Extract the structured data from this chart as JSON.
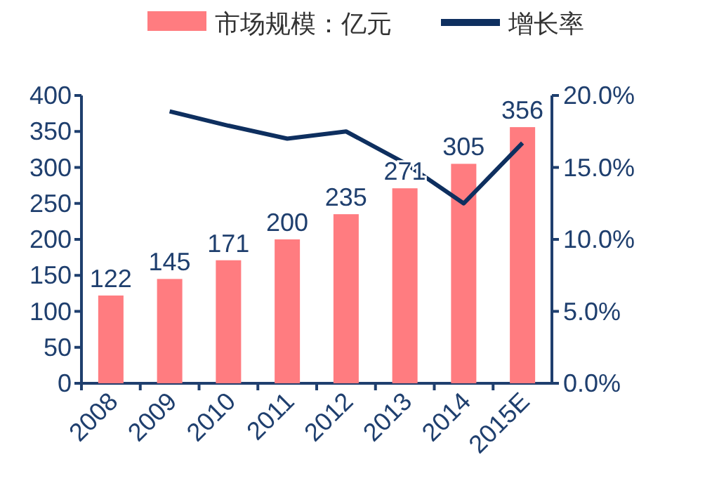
{
  "chart_data": {
    "type": "bar",
    "categories": [
      "2008",
      "2009",
      "2010",
      "2011",
      "2012",
      "2013",
      "2014",
      "2015E"
    ],
    "series": [
      {
        "name": "市场规模：亿元",
        "color": "#ff7c80",
        "values": [
          122,
          145,
          171,
          200,
          235,
          271,
          305,
          356
        ],
        "value_labels": [
          "122",
          "145",
          "171",
          "200",
          "235",
          "271",
          "305",
          "356"
        ]
      },
      {
        "name": "增长率",
        "type": "line",
        "axis": "y2",
        "color": "#0e2f5f",
        "values": [
          null,
          18.9,
          17.9,
          17.0,
          17.5,
          15.3,
          12.5,
          16.7
        ]
      }
    ],
    "ylim": [
      0,
      400
    ],
    "yticks": [
      0,
      50,
      100,
      150,
      200,
      250,
      300,
      350,
      400
    ],
    "y2lim": [
      0,
      20
    ],
    "y2ticks": [
      {
        "value": 0,
        "label": "0.0%"
      },
      {
        "value": 5,
        "label": "5.0%"
      },
      {
        "value": 10,
        "label": "10.0%"
      },
      {
        "value": 15,
        "label": "15.0%"
      },
      {
        "value": 20,
        "label": "20.0%"
      }
    ],
    "legend": "top",
    "grid": false
  }
}
